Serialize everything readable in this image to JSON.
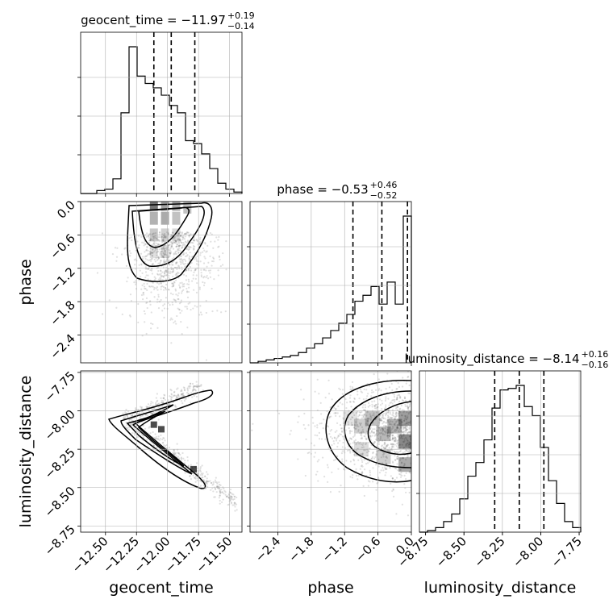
{
  "chart_data": {
    "type": "corner",
    "parameters": [
      "geocent_time",
      "phase",
      "luminosity_distance"
    ],
    "panels": [
      {
        "kind": "histogram",
        "param": "geocent_time",
        "title_name": "geocent_time",
        "median": "−11.97",
        "plus": "+0.19",
        "minus": "−0.14",
        "quantiles": [
          -12.11,
          -11.97,
          -11.78
        ],
        "xlim": [
          -12.7,
          -11.4
        ],
        "bins": [
          -12.7,
          -12.635,
          -12.57,
          -12.505,
          -12.44,
          -12.375,
          -12.31,
          -12.245,
          -12.18,
          -12.115,
          -12.05,
          -11.985,
          -11.92,
          -11.855,
          -11.79,
          -11.725,
          -11.66,
          -11.595,
          -11.53,
          -11.465,
          -11.4
        ],
        "counts": [
          0.0,
          0.0,
          0.02,
          0.03,
          0.1,
          0.55,
          1.0,
          0.8,
          0.75,
          0.72,
          0.67,
          0.6,
          0.55,
          0.36,
          0.34,
          0.27,
          0.17,
          0.07,
          0.03,
          0.01
        ]
      },
      {
        "kind": "histogram",
        "param": "phase",
        "title_name": "phase",
        "median": "−0.53",
        "plus": "+0.46",
        "minus": "−0.52",
        "quantiles": [
          -1.05,
          -0.53,
          -0.07
        ],
        "xlim": [
          -2.9,
          0.0
        ],
        "bins": [
          -2.9,
          -2.755,
          -2.61,
          -2.465,
          -2.32,
          -2.175,
          -2.03,
          -1.885,
          -1.74,
          -1.595,
          -1.45,
          -1.305,
          -1.16,
          -1.015,
          -0.87,
          -0.725,
          -0.58,
          -0.435,
          -0.29,
          -0.145,
          0.0
        ],
        "counts": [
          0.0,
          0.01,
          0.02,
          0.03,
          0.04,
          0.05,
          0.07,
          0.1,
          0.13,
          0.17,
          0.22,
          0.27,
          0.33,
          0.42,
          0.46,
          0.52,
          0.4,
          0.55,
          0.4,
          1.0
        ]
      },
      {
        "kind": "histogram",
        "param": "luminosity_distance",
        "title_name": "luminosity_distance",
        "median": "−8.14",
        "plus": "+0.16",
        "minus": "−0.16",
        "quantiles": [
          -8.3,
          -8.14,
          -7.98
        ],
        "xlim": [
          -8.79,
          -7.74
        ],
        "bins": [
          -8.79,
          -8.7375,
          -8.685,
          -8.6325,
          -8.58,
          -8.5275,
          -8.475,
          -8.4225,
          -8.37,
          -8.3175,
          -8.265,
          -8.2125,
          -8.16,
          -8.1075,
          -8.055,
          -8.0025,
          -7.95,
          -7.8975,
          -7.845,
          -7.7925,
          -7.74
        ],
        "counts": [
          0.0,
          0.01,
          0.03,
          0.07,
          0.12,
          0.22,
          0.37,
          0.46,
          0.61,
          0.82,
          0.94,
          0.95,
          0.97,
          0.83,
          0.77,
          0.56,
          0.34,
          0.19,
          0.07,
          0.03
        ]
      },
      {
        "kind": "2d",
        "x": "geocent_time",
        "y": "phase",
        "xlim": [
          -12.7,
          -11.4
        ],
        "ylim": [
          -2.9,
          0.0
        ],
        "shape": "blob"
      },
      {
        "kind": "2d",
        "x": "geocent_time",
        "y": "luminosity_distance",
        "xlim": [
          -12.7,
          -11.4
        ],
        "ylim": [
          -8.79,
          -7.74
        ],
        "shape": "vshape"
      },
      {
        "kind": "2d",
        "x": "phase",
        "y": "luminosity_distance",
        "xlim": [
          -2.9,
          0.0
        ],
        "ylim": [
          -8.79,
          -7.74
        ],
        "shape": "edge"
      }
    ],
    "ticks": {
      "geocent_time": {
        "values": [
          -12.5,
          -12.25,
          -12.0,
          -11.75,
          -11.5
        ],
        "labels": [
          "−12.50",
          "−12.25",
          "−12.00",
          "−11.75",
          "−11.50"
        ]
      },
      "phase": {
        "values": [
          -2.4,
          -1.8,
          -1.2,
          -0.6,
          0.0
        ],
        "labels": [
          "−2.4",
          "−1.8",
          "−1.2",
          "−0.6",
          "0.0"
        ]
      },
      "luminosity_distance": {
        "values": [
          -8.75,
          -8.5,
          -8.25,
          -8.0,
          -7.75
        ],
        "labels": [
          "−8.75",
          "−8.50",
          "−8.25",
          "−8.00",
          "−7.75"
        ]
      }
    },
    "grid": true,
    "axis_labels": {
      "x": [
        "geocent_time",
        "phase",
        "luminosity_distance"
      ],
      "y": [
        "phase",
        "luminosity_distance"
      ]
    }
  }
}
